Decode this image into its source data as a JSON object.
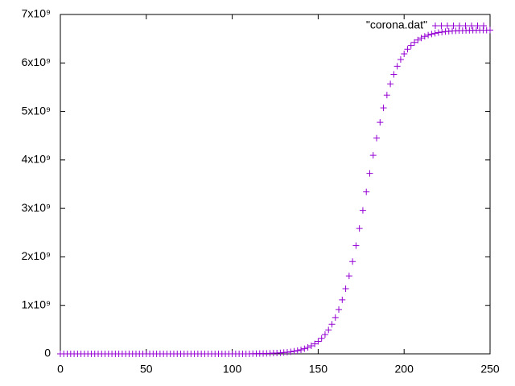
{
  "chart_data": {
    "type": "scatter",
    "marker": "+",
    "x": [
      0,
      2,
      4,
      6,
      8,
      10,
      12,
      14,
      16,
      18,
      20,
      22,
      24,
      26,
      28,
      30,
      32,
      34,
      36,
      38,
      40,
      42,
      44,
      46,
      48,
      50,
      52,
      54,
      56,
      58,
      60,
      62,
      64,
      66,
      68,
      70,
      72,
      74,
      76,
      78,
      80,
      82,
      84,
      86,
      88,
      90,
      92,
      94,
      96,
      98,
      100,
      102,
      104,
      106,
      108,
      110,
      112,
      114,
      116,
      118,
      120,
      122,
      124,
      126,
      128,
      130,
      132,
      134,
      136,
      138,
      140,
      142,
      144,
      146,
      148,
      150,
      152,
      154,
      156,
      158,
      160,
      162,
      164,
      166,
      168,
      170,
      172,
      174,
      176,
      178,
      180,
      182,
      184,
      186,
      188,
      190,
      192,
      194,
      196,
      198,
      200,
      202,
      204,
      206,
      208,
      210,
      212,
      214,
      216,
      218,
      220,
      222,
      224,
      226,
      228,
      230,
      232,
      234,
      236,
      238,
      240,
      242,
      244,
      246,
      248,
      250
    ],
    "series": [
      {
        "name": "\"corona.dat\"",
        "color": "#9400d3",
        "values": [
          0,
          0,
          0,
          0,
          0,
          0,
          0,
          0,
          0,
          0,
          0,
          0,
          0,
          0,
          0,
          0,
          0,
          0,
          0,
          0,
          0,
          0,
          0,
          0,
          0,
          0,
          0,
          0,
          0,
          0,
          0,
          0,
          0,
          0,
          0,
          0,
          0,
          0,
          0,
          0,
          0,
          0,
          0,
          0,
          0,
          0,
          0,
          0,
          0,
          0,
          0,
          0,
          0,
          0,
          0,
          0,
          3380000.0,
          4260000.0,
          5360000.0,
          6750000.0,
          8500000.0,
          10700000.0,
          13500000.0,
          16900000.0,
          21300000.0,
          26700000.0,
          33600000.0,
          42200000.0,
          53100000.0,
          66700000.0,
          83600000.0,
          105000000.0,
          132000000.0,
          165000000.0,
          206000000.0,
          257000000.0,
          320000000.0,
          398000000.0,
          493000000.0,
          609000000.0,
          748000000.0,
          915000000.0,
          1113000000.0,
          1343000000.0,
          1606000000.0,
          1903000000.0,
          2231000000.0,
          2585000000.0,
          2958000000.0,
          3340000000.0,
          3722000000.0,
          4095000000.0,
          4449000000.0,
          4776000000.0,
          5073000000.0,
          5337000000.0,
          5567000000.0,
          5765000000.0,
          5932000000.0,
          6071000000.0,
          6187000000.0,
          6282000000.0,
          6360000000.0,
          6423000000.0,
          6474000000.0,
          6515000000.0,
          6549000000.0,
          6575000000.0,
          6596000000.0,
          6613000000.0,
          6627000000.0,
          6638000000.0,
          6647000000.0,
          6653000000.0,
          6659000000.0,
          6663000000.0,
          6666000000.0,
          6669000000.0,
          6671000000.0,
          6672000000.0,
          6674000000.0,
          6675000000.0,
          6676000000.0,
          6677000000.0,
          6677000000.0,
          6678000000.0
        ]
      }
    ],
    "xlim": [
      0,
      250
    ],
    "xticks": [
      0,
      50,
      100,
      150,
      200,
      250
    ],
    "ylim": [
      0,
      7000000000
    ],
    "yticks": [
      0,
      {
        "value": 1000000000,
        "label": "1x10⁹"
      },
      {
        "value": 2000000000,
        "label": "2x10⁹"
      },
      {
        "value": 3000000000,
        "label": "3x10⁹"
      },
      {
        "value": 4000000000,
        "label": "4x10⁹"
      },
      {
        "value": 5000000000,
        "label": "5x10⁹"
      },
      {
        "value": 6000000000,
        "label": "6x10⁹"
      },
      {
        "value": 7000000000,
        "label": "7x10⁹"
      }
    ],
    "legend": "top-right"
  }
}
